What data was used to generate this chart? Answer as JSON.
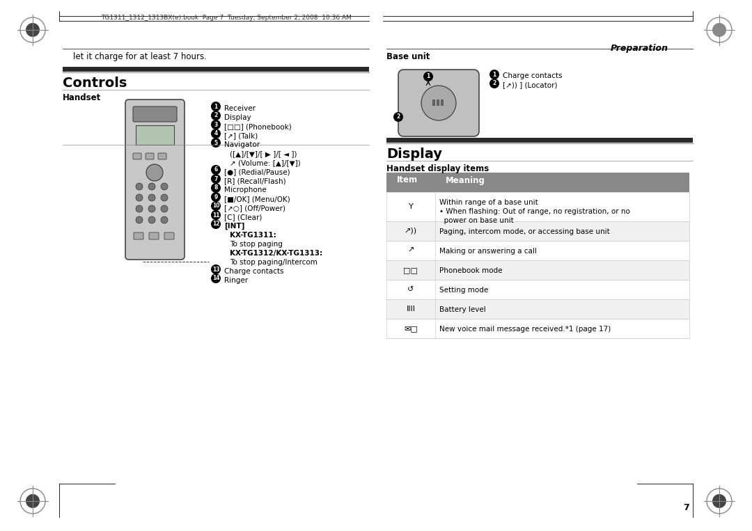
{
  "page_title": "Preparation",
  "controls_title": "Controls",
  "display_title": "Display",
  "handset_label": "Handset",
  "base_unit_label": "Base unit",
  "handset_display_items": "Handset display items",
  "header_text": "TG1311_1312_1313BX(e).book  Page 7  Tuesday, September 2, 2008  10:36 AM",
  "charge_text": "let it charge for at least 7 hours.",
  "handset_items": [
    {
      "num": "1",
      "text": "Receiver"
    },
    {
      "num": "2",
      "text": "Display"
    },
    {
      "num": "3",
      "text": "[□□] (Phonebook)"
    },
    {
      "num": "4",
      "text": "[↗] (Talk)"
    },
    {
      "num": "5",
      "text": "Navigator\n([▲]/[▼]/[ ▶ ]/[ ◄ ])\n↗ (Volume: [▲]/[▼])"
    },
    {
      "num": "6",
      "text": "[●] (Redial/Pause)"
    },
    {
      "num": "7",
      "text": "[R] (Recall/Flash)"
    },
    {
      "num": "8",
      "text": "Microphone"
    },
    {
      "num": "9",
      "text": "[■/OK] (Menu/OK)"
    },
    {
      "num": "10",
      "text": "[↗○] (Off/Power)"
    },
    {
      "num": "11",
      "text": "[C] (Clear)"
    },
    {
      "num": "12",
      "text": "[INT]\nKX-TG1311:\nTo stop paging\nKX-TG1312/KX-TG1313:\nTo stop paging/Intercom"
    },
    {
      "num": "13",
      "text": "Charge contacts"
    },
    {
      "num": "14",
      "text": "Ringer"
    }
  ],
  "base_unit_items": [
    {
      "num": "1",
      "text": "Charge contacts"
    },
    {
      "num": "2",
      "text": "[↗)) ] (Locator)"
    }
  ],
  "display_table_header": [
    "Item",
    "Meaning"
  ],
  "display_table_rows": [
    {
      "item": "Y",
      "meaning": "Within range of a base unit\n• When flashing: Out of range, no registration, or no\n  power on base unit"
    },
    {
      "item": "↗))",
      "meaning": "Paging, intercom mode, or accessing base unit"
    },
    {
      "item": "↗",
      "meaning": "Making or answering a call"
    },
    {
      "item": "□□",
      "meaning": "Phonebook mode"
    },
    {
      "item": "↺",
      "meaning": "Setting mode"
    },
    {
      "item": "IIII",
      "meaning": "Battery level"
    },
    {
      "item": "✉□",
      "meaning": "New voice mail message received.*1 (page 17)"
    }
  ],
  "page_number": "7",
  "bg_color": "#ffffff",
  "text_color": "#000000",
  "header_bar_color": "#333333",
  "table_header_color": "#555555",
  "table_row_alt_color": "#f5f5f5"
}
